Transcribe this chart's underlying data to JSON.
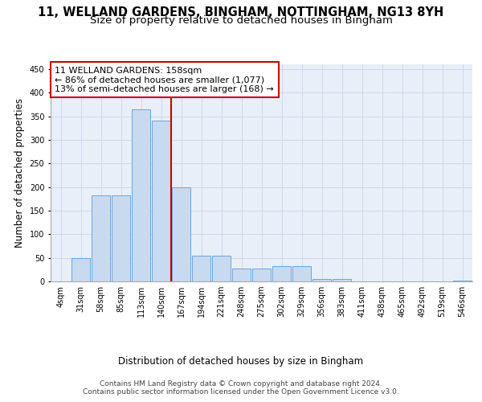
{
  "title_line1": "11, WELLAND GARDENS, BINGHAM, NOTTINGHAM, NG13 8YH",
  "title_line2": "Size of property relative to detached houses in Bingham",
  "xlabel": "Distribution of detached houses by size in Bingham",
  "ylabel": "Number of detached properties",
  "bin_labels": [
    "4sqm",
    "31sqm",
    "58sqm",
    "85sqm",
    "113sqm",
    "140sqm",
    "167sqm",
    "194sqm",
    "221sqm",
    "248sqm",
    "275sqm",
    "302sqm",
    "329sqm",
    "356sqm",
    "383sqm",
    "411sqm",
    "438sqm",
    "465sqm",
    "492sqm",
    "519sqm",
    "546sqm"
  ],
  "bar_values": [
    0,
    50,
    182,
    182,
    365,
    340,
    200,
    54,
    54,
    27,
    27,
    32,
    32,
    5,
    5,
    0,
    0,
    0,
    0,
    0,
    2
  ],
  "bar_color": "#c8daf0",
  "bar_edge_color": "#5b9bd5",
  "vline_x_index": 6,
  "vline_color": "#cc0000",
  "annotation_text": "11 WELLAND GARDENS: 158sqm\n← 86% of detached houses are smaller (1,077)\n13% of semi-detached houses are larger (168) →",
  "annotation_box_color": "#ffffff",
  "annotation_box_edge": "#cc0000",
  "ylim": [
    0,
    460
  ],
  "yticks": [
    0,
    50,
    100,
    150,
    200,
    250,
    300,
    350,
    400,
    450
  ],
  "grid_color": "#d0d8e8",
  "bg_color": "#e8eff8",
  "footer_text": "Contains HM Land Registry data © Crown copyright and database right 2024.\nContains public sector information licensed under the Open Government Licence v3.0.",
  "title_fontsize": 10.5,
  "subtitle_fontsize": 9.5,
  "axis_label_fontsize": 8.5,
  "tick_fontsize": 7,
  "annotation_fontsize": 8,
  "footer_fontsize": 6.5
}
